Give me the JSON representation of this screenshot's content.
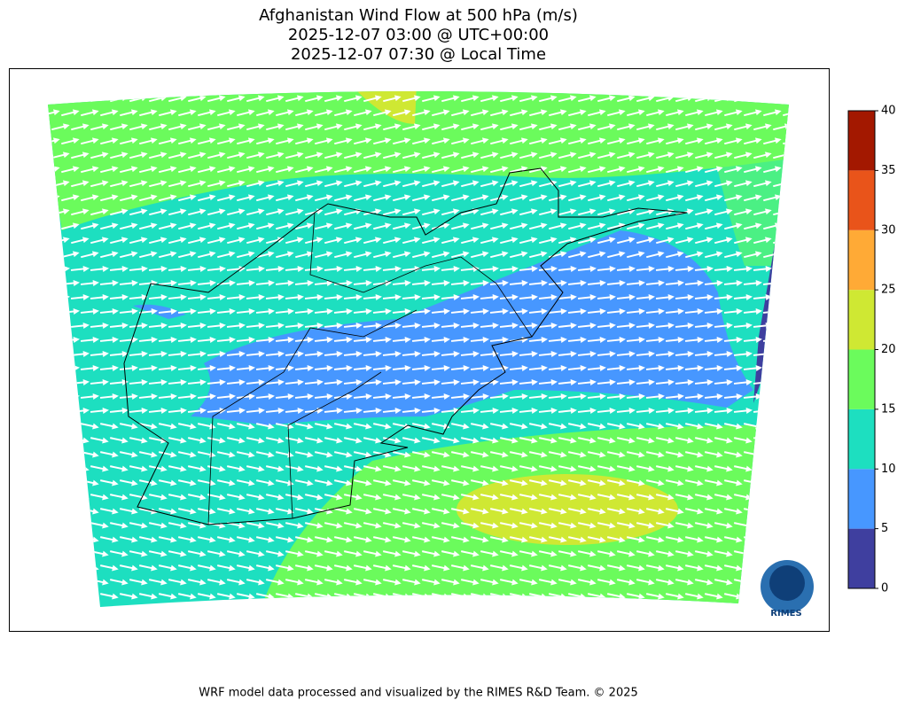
{
  "title": [
    "Afghanistan Wind Flow at 500 hPa (m/s)",
    "2025-12-07 03:00 @ UTC+00:00",
    "2025-12-07 07:30 @ Local Time"
  ],
  "colorbar": {
    "levels": [
      0,
      5,
      10,
      15,
      20,
      25,
      30,
      35,
      40
    ],
    "colors": [
      "#3f3f9f",
      "#4797ff",
      "#1ddfc0",
      "#6bfb5c",
      "#cfe833",
      "#ffaa36",
      "#e9541a",
      "#a31800"
    ]
  },
  "logo": "RIMES",
  "footer": "WRF model data processed and visualized by the RIMES R&D Team. © 2025"
}
